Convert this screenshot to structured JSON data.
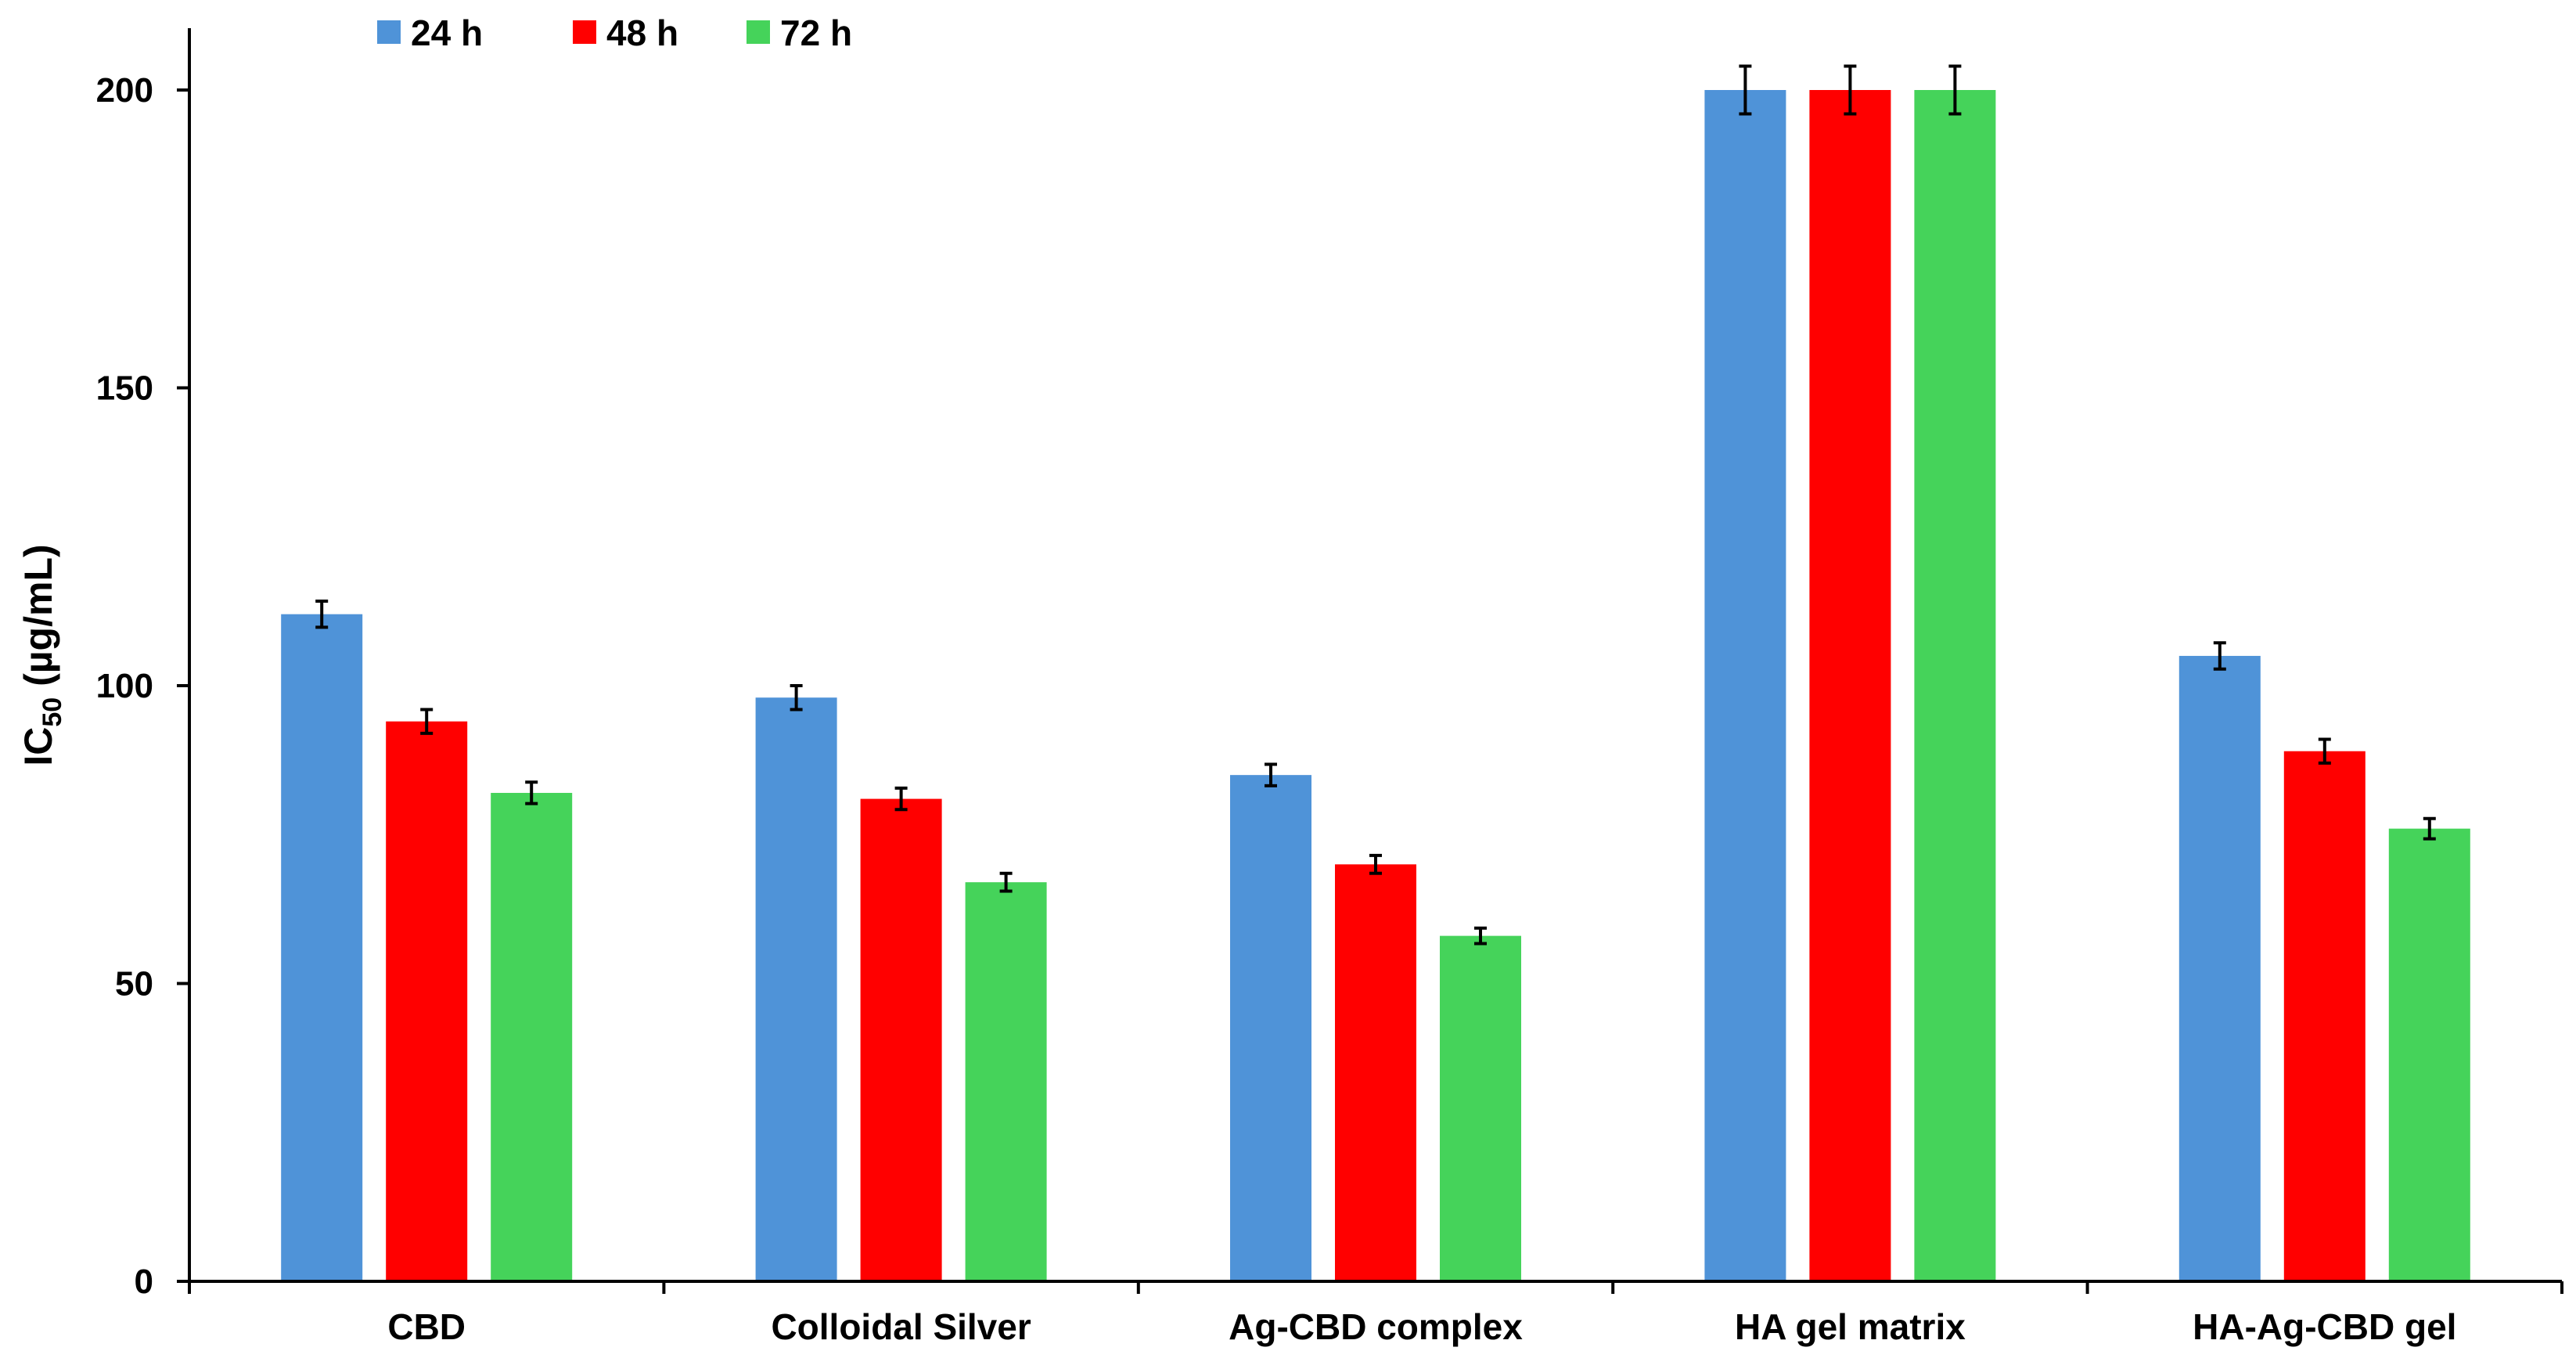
{
  "chart_data": {
    "type": "bar",
    "title": "",
    "xlabel": "",
    "ylabel": {
      "main": "IC",
      "sub": "50",
      "unit": " (µg/mL)"
    },
    "ylim": [
      0,
      200
    ],
    "yticks": [
      0,
      50,
      100,
      150,
      200
    ],
    "grid": false,
    "legend_position": "top-left",
    "categories": [
      "CBD",
      "Colloidal Silver",
      "Ag-CBD complex",
      "HA gel matrix",
      "HA-Ag-CBD gel"
    ],
    "series": [
      {
        "name": "24 h",
        "color": "#4f93d8",
        "values": [
          112,
          98,
          85,
          200,
          105
        ],
        "errors": [
          2.2,
          2.0,
          1.8,
          4.0,
          2.2
        ]
      },
      {
        "name": "48 h",
        "color": "#ff0000",
        "values": [
          94,
          81,
          70,
          200,
          89
        ],
        "errors": [
          2.0,
          1.8,
          1.5,
          4.0,
          2.0
        ]
      },
      {
        "name": "72 h",
        "color": "#45d35a",
        "values": [
          82,
          67,
          58,
          200,
          76
        ],
        "errors": [
          1.8,
          1.5,
          1.3,
          4.0,
          1.7
        ]
      }
    ]
  }
}
